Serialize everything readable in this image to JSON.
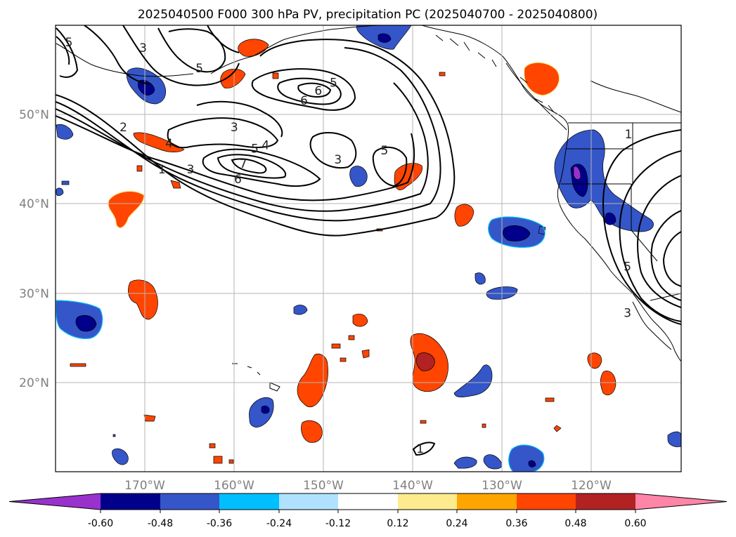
{
  "title": "2025040500 F000 300 hPa PV, precipitation PC (2025040700 - 2025040800)",
  "map": {
    "lon_range": [
      -180,
      -110
    ],
    "lat_range": [
      10,
      60
    ],
    "lat_ticks": [
      {
        "value": 50,
        "label": "50°N"
      },
      {
        "value": 40,
        "label": "40°N"
      },
      {
        "value": 30,
        "label": "30°N"
      },
      {
        "value": 20,
        "label": "20°N"
      }
    ],
    "lon_ticks": [
      {
        "value": -170,
        "label": "170°W"
      },
      {
        "value": -160,
        "label": "160°W"
      },
      {
        "value": -150,
        "label": "150°W"
      },
      {
        "value": -140,
        "label": "140°W"
      },
      {
        "value": -130,
        "label": "130°W"
      },
      {
        "value": -120,
        "label": "120°W"
      }
    ],
    "grid": true
  },
  "colorbar": {
    "extend": "both",
    "ticks": [
      "-0.60",
      "-0.48",
      "-0.36",
      "-0.24",
      "-0.12",
      "0.12",
      "0.24",
      "0.36",
      "0.48",
      "0.60"
    ],
    "colors": [
      "#9932cc",
      "#00008b",
      "#3556c8",
      "#00bfff",
      "#b0e2ff",
      "#ffffff",
      "#ffeb8f",
      "#ffa500",
      "#ff4500",
      "#b22222",
      "#ff85a8"
    ]
  },
  "pv_contour_labels": [
    {
      "text": "5",
      "lon": -178.5,
      "lat": 58.1
    },
    {
      "text": "3",
      "lon": -170.2,
      "lat": 57.5
    },
    {
      "text": "5",
      "lon": -163.9,
      "lat": 55.2
    },
    {
      "text": "5",
      "lon": -148.9,
      "lat": 53.6
    },
    {
      "text": "6",
      "lon": -150.6,
      "lat": 52.7
    },
    {
      "text": "6",
      "lon": -152.2,
      "lat": 51.6
    },
    {
      "text": "3",
      "lon": -160.0,
      "lat": 48.6
    },
    {
      "text": "5",
      "lon": -157.7,
      "lat": 46.2
    },
    {
      "text": "4",
      "lon": -156.5,
      "lat": 46.6
    },
    {
      "text": "5",
      "lon": -143.2,
      "lat": 46.0
    },
    {
      "text": "3",
      "lon": -148.4,
      "lat": 45.0
    },
    {
      "text": "2",
      "lon": -172.4,
      "lat": 48.6
    },
    {
      "text": "4",
      "lon": -167.3,
      "lat": 46.8
    },
    {
      "text": "3",
      "lon": -164.9,
      "lat": 43.9
    },
    {
      "text": "1",
      "lon": -168.1,
      "lat": 43.9
    },
    {
      "text": "7",
      "lon": -159.0,
      "lat": 44.5
    },
    {
      "text": "6",
      "lon": -159.6,
      "lat": 42.8
    },
    {
      "text": "1",
      "lon": -115.9,
      "lat": 47.8
    },
    {
      "text": "5",
      "lon": -116.0,
      "lat": 33.0
    },
    {
      "text": "3",
      "lon": -116.0,
      "lat": 27.8
    },
    {
      "text": "1",
      "lon": -139.2,
      "lat": 12.6
    }
  ]
}
